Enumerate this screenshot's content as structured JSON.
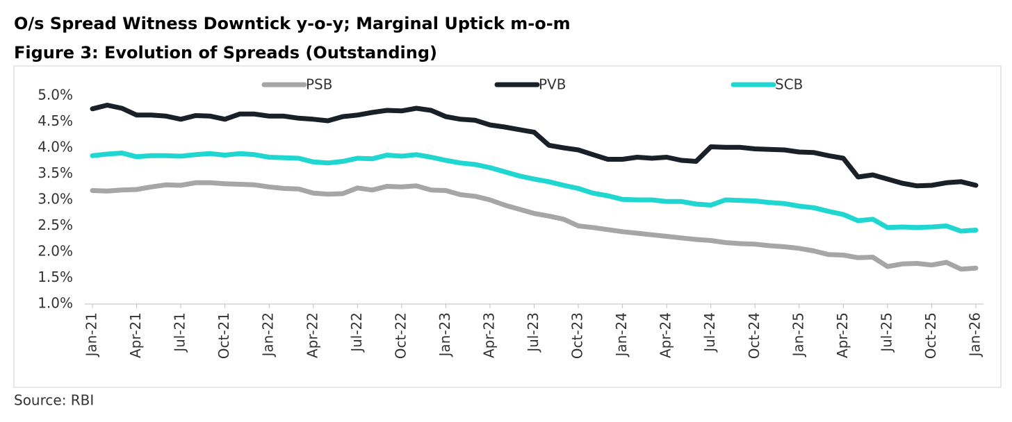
{
  "chart_data": {
    "type": "line",
    "title": "O/s Spread Witness Downtick y-o-y; Marginal Uptick m-o-m",
    "subtitle": "Figure 3: Evolution of Spreads (Outstanding)",
    "source": "Source: RBI",
    "legend": "top",
    "categories": [
      "Jan-21",
      null,
      null,
      "Apr-21",
      null,
      null,
      "Jul-21",
      null,
      null,
      "Oct-21",
      null,
      null,
      "Jan-22",
      null,
      null,
      "Apr-22",
      null,
      null,
      "Jul-22",
      null,
      null,
      "Oct-22",
      null,
      null,
      "Jan-23",
      null,
      null,
      "Apr-23",
      null,
      null,
      "Jul-23",
      null,
      null,
      "Oct-23",
      null,
      null,
      "Jan-24",
      null,
      null,
      "Apr-24",
      null,
      null,
      "Jul-24",
      null,
      null,
      "Oct-24",
      null,
      null,
      "Jan-25",
      null,
      null,
      "Apr-25",
      null,
      null,
      "Jul-25",
      null,
      null,
      "Oct-25",
      null,
      null,
      "Jan-26"
    ],
    "series": [
      {
        "name": "PSB",
        "color": "#a6a6a6",
        "values": [
          3.18,
          3.17,
          3.19,
          3.2,
          3.25,
          3.29,
          3.28,
          3.33,
          3.33,
          3.31,
          3.3,
          3.29,
          3.25,
          3.22,
          3.21,
          3.13,
          3.11,
          3.12,
          3.23,
          3.19,
          3.26,
          3.25,
          3.27,
          3.19,
          3.18,
          3.1,
          3.07,
          3.0,
          2.9,
          2.82,
          2.74,
          2.69,
          2.63,
          2.5,
          2.47,
          2.43,
          2.39,
          2.36,
          2.33,
          2.3,
          2.27,
          2.24,
          2.22,
          2.18,
          2.16,
          2.15,
          2.12,
          2.1,
          2.07,
          2.02,
          1.95,
          1.94,
          1.89,
          1.9,
          1.72,
          1.77,
          1.78,
          1.75,
          1.8,
          1.67,
          1.69
        ]
      },
      {
        "name": "PVB",
        "color": "#1a2028",
        "values": [
          4.75,
          4.82,
          4.76,
          4.63,
          4.63,
          4.61,
          4.55,
          4.62,
          4.61,
          4.55,
          4.65,
          4.65,
          4.61,
          4.61,
          4.57,
          4.55,
          4.52,
          4.6,
          4.63,
          4.68,
          4.72,
          4.71,
          4.76,
          4.72,
          4.6,
          4.55,
          4.53,
          4.44,
          4.4,
          4.35,
          4.3,
          4.05,
          4.0,
          3.96,
          3.87,
          3.78,
          3.78,
          3.82,
          3.8,
          3.82,
          3.76,
          3.74,
          4.02,
          4.01,
          4.01,
          3.98,
          3.97,
          3.96,
          3.92,
          3.91,
          3.85,
          3.8,
          3.44,
          3.48,
          3.4,
          3.32,
          3.27,
          3.28,
          3.33,
          3.35,
          3.28
        ]
      },
      {
        "name": "SCB",
        "color": "#1fd6d0",
        "values": [
          3.85,
          3.88,
          3.9,
          3.83,
          3.85,
          3.85,
          3.84,
          3.87,
          3.89,
          3.86,
          3.89,
          3.87,
          3.82,
          3.81,
          3.8,
          3.73,
          3.71,
          3.74,
          3.8,
          3.79,
          3.86,
          3.84,
          3.87,
          3.82,
          3.76,
          3.71,
          3.68,
          3.62,
          3.54,
          3.46,
          3.4,
          3.35,
          3.28,
          3.22,
          3.13,
          3.08,
          3.01,
          3.0,
          3.0,
          2.97,
          2.97,
          2.92,
          2.9,
          3.0,
          2.99,
          2.98,
          2.95,
          2.93,
          2.88,
          2.85,
          2.78,
          2.72,
          2.6,
          2.63,
          2.47,
          2.48,
          2.47,
          2.48,
          2.5,
          2.4,
          2.42
        ]
      }
    ],
    "ylim": [
      1.0,
      5.0
    ],
    "yticks": [
      {
        "value": 1.0,
        "label": "1.0%"
      },
      {
        "value": 1.5,
        "label": "1.5%"
      },
      {
        "value": 2.0,
        "label": "2.0%"
      },
      {
        "value": 2.5,
        "label": "2.5%"
      },
      {
        "value": 3.0,
        "label": "3.0%"
      },
      {
        "value": 3.5,
        "label": "3.5%"
      },
      {
        "value": 4.0,
        "label": "4.0%"
      },
      {
        "value": 4.5,
        "label": "4.5%"
      },
      {
        "value": 5.0,
        "label": "5.0%"
      }
    ],
    "grid": false
  }
}
